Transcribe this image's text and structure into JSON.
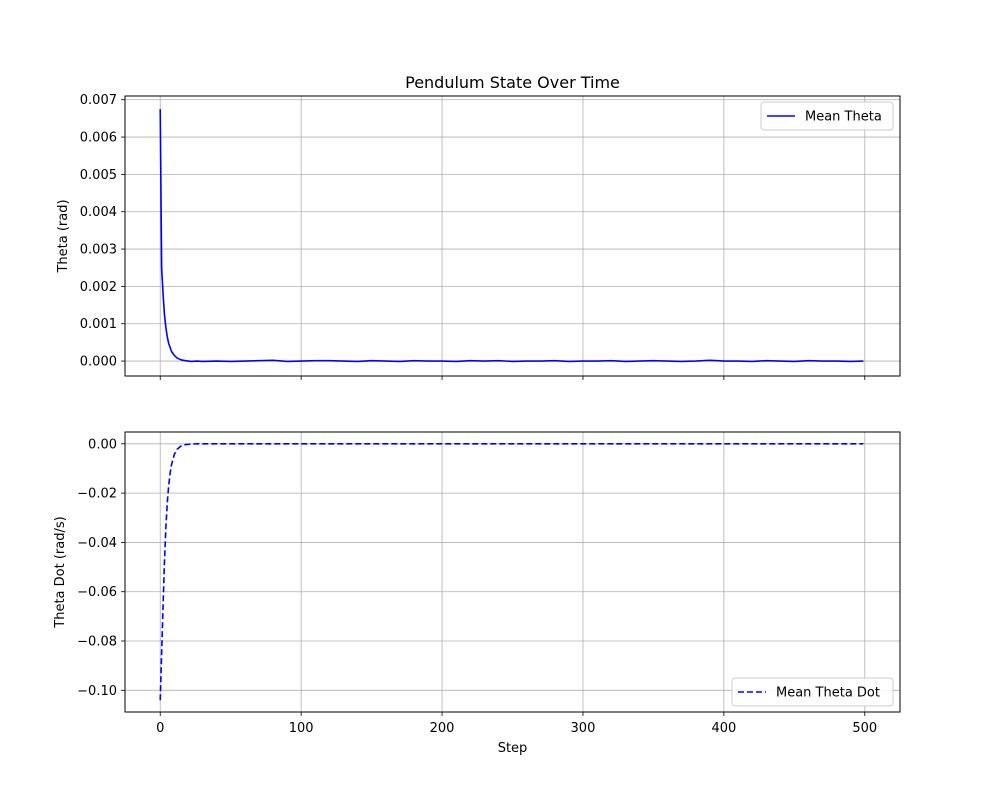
{
  "chart_data": [
    {
      "type": "line",
      "title": "Pendulum State Over Time",
      "xlabel": "",
      "ylabel": "Theta (rad)",
      "xlim": [
        -25,
        525
      ],
      "ylim": [
        -0.0004,
        0.0071
      ],
      "x_ticks": [
        0,
        100,
        200,
        300,
        400,
        500
      ],
      "show_x_tick_labels": false,
      "y_ticks": [
        0.0,
        0.001,
        0.002,
        0.003,
        0.004,
        0.005,
        0.006,
        0.007
      ],
      "y_tick_labels": [
        "0.000",
        "0.001",
        "0.002",
        "0.003",
        "0.004",
        "0.005",
        "0.006",
        "0.007"
      ],
      "grid": true,
      "legend_position": "top-right",
      "series": [
        {
          "name": "Mean Theta",
          "color": "#0000ff",
          "style": "solid",
          "x": [
            0,
            1,
            2,
            3,
            4,
            5,
            6,
            8,
            10,
            12,
            15,
            18,
            22,
            26,
            30,
            40,
            50,
            60,
            70,
            80,
            90,
            100,
            110,
            120,
            130,
            140,
            150,
            160,
            170,
            180,
            190,
            200,
            210,
            220,
            230,
            240,
            250,
            260,
            270,
            280,
            290,
            300,
            310,
            320,
            330,
            340,
            350,
            360,
            370,
            380,
            390,
            400,
            410,
            420,
            430,
            440,
            450,
            460,
            470,
            480,
            490,
            499
          ],
          "values": [
            0.00675,
            0.0025,
            0.0018,
            0.00125,
            0.0009,
            0.00065,
            0.00047,
            0.00026,
            0.00015,
            8e-05,
            3e-05,
            1e-05,
            -1e-05,
            0.0,
            -1e-05,
            0.0,
            -1e-05,
            0.0,
            1e-05,
            2e-05,
            -1e-05,
            0.0,
            1e-05,
            1e-05,
            0.0,
            -1e-05,
            1e-05,
            0.0,
            -1e-05,
            1e-05,
            0.0,
            0.0,
            -1e-05,
            1e-05,
            0.0,
            1e-05,
            -1e-05,
            0.0,
            0.0,
            1e-05,
            -1e-05,
            0.0,
            0.0,
            1e-05,
            -1e-05,
            0.0,
            1e-05,
            0.0,
            -1e-05,
            0.0,
            2e-05,
            0.0,
            0.0,
            -1e-05,
            1e-05,
            0.0,
            -1e-05,
            1e-05,
            0.0,
            0.0,
            -1e-05,
            0.0
          ]
        }
      ]
    },
    {
      "type": "line",
      "title": "",
      "xlabel": "Step",
      "ylabel": "Theta Dot (rad/s)",
      "xlim": [
        -25,
        525
      ],
      "ylim": [
        -0.1088,
        0.0048
      ],
      "x_ticks": [
        0,
        100,
        200,
        300,
        400,
        500
      ],
      "x_tick_labels": [
        "0",
        "100",
        "200",
        "300",
        "400",
        "500"
      ],
      "show_x_tick_labels": true,
      "y_ticks": [
        -0.1,
        -0.08,
        -0.06,
        -0.04,
        -0.02,
        0.0
      ],
      "y_tick_labels": [
        "−0.10",
        "−0.08",
        "−0.06",
        "−0.04",
        "−0.02",
        "0.00"
      ],
      "grid": true,
      "legend_position": "bottom-right",
      "series": [
        {
          "name": "Mean Theta Dot",
          "color": "#0000ff",
          "style": "dashed",
          "x": [
            0,
            1,
            2,
            3,
            4,
            5,
            6,
            7,
            8,
            10,
            12,
            15,
            18,
            22,
            26,
            30,
            50,
            100,
            200,
            300,
            400,
            499
          ],
          "values": [
            -0.104,
            -0.085,
            -0.066,
            -0.048,
            -0.034,
            -0.024,
            -0.017,
            -0.012,
            -0.0085,
            -0.0043,
            -0.0022,
            -0.0008,
            -0.0003,
            -0.0001,
            0.0,
            0.0,
            0.0,
            0.0,
            0.0,
            0.0,
            0.0,
            0.0
          ]
        }
      ]
    }
  ]
}
